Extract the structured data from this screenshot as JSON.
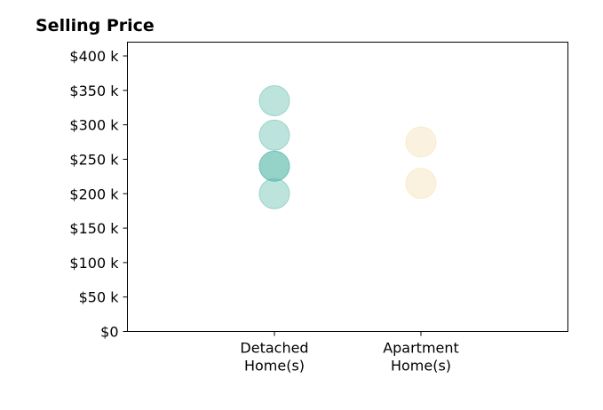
{
  "chart_data": {
    "type": "scatter",
    "title": "Selling Price",
    "xlabel": "",
    "ylabel": "",
    "categories": [
      [
        "Detached",
        "Home(s)"
      ],
      [
        "Apartment",
        "Home(s)"
      ]
    ],
    "y_ticks": [
      0,
      50000,
      100000,
      150000,
      200000,
      250000,
      300000,
      350000,
      400000
    ],
    "y_tick_labels": [
      "$0",
      "$50 k",
      "$100 k",
      "$150 k",
      "$200 k",
      "$250 k",
      "$300 k",
      "$350 k",
      "$400 k"
    ],
    "ylim": [
      0,
      420000
    ],
    "grid": false,
    "series": [
      {
        "category_index": 0,
        "color": "#5bb8ab",
        "values": [
          335000,
          285000,
          240000,
          240000,
          200000
        ]
      },
      {
        "category_index": 1,
        "color": "#f2dfb0",
        "values": [
          275000,
          215000
        ]
      }
    ]
  }
}
